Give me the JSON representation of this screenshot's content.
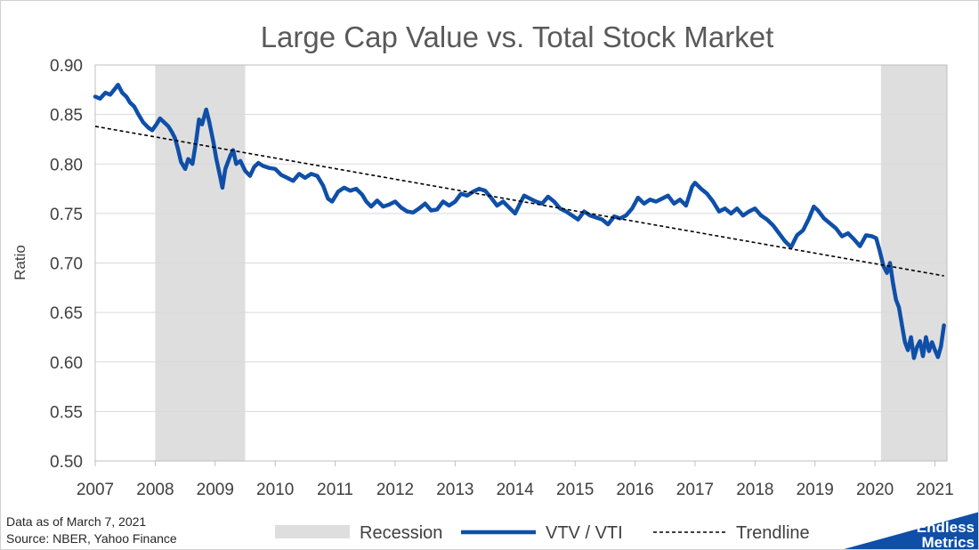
{
  "chart_data": {
    "type": "line",
    "title": "Large Cap Value vs. Total Stock Market",
    "ylabel": "Ratio",
    "xlabel": "",
    "xlim": [
      2007.0,
      2021.2
    ],
    "ylim": [
      0.5,
      0.9
    ],
    "y_ticks": [
      "0.50",
      "0.55",
      "0.60",
      "0.65",
      "0.70",
      "0.75",
      "0.80",
      "0.85",
      "0.90"
    ],
    "x_ticks": [
      "2007",
      "2008",
      "2009",
      "2010",
      "2011",
      "2012",
      "2013",
      "2014",
      "2015",
      "2016",
      "2017",
      "2018",
      "2019",
      "2020",
      "2021"
    ],
    "grid": "horizontal",
    "legend_position": "bottom",
    "recessions": [
      {
        "name": "Recession",
        "start": 2008.0,
        "end": 2009.5
      },
      {
        "name": "Recession",
        "start": 2020.1,
        "end": 2021.2
      }
    ],
    "series": [
      {
        "name": "VTV / VTI",
        "color": "#0f4fa8",
        "points": [
          [
            2007.0,
            0.868
          ],
          [
            2007.08,
            0.866
          ],
          [
            2007.17,
            0.872
          ],
          [
            2007.25,
            0.87
          ],
          [
            2007.33,
            0.876
          ],
          [
            2007.38,
            0.88
          ],
          [
            2007.45,
            0.872
          ],
          [
            2007.52,
            0.868
          ],
          [
            2007.58,
            0.862
          ],
          [
            2007.65,
            0.858
          ],
          [
            2007.72,
            0.85
          ],
          [
            2007.8,
            0.842
          ],
          [
            2007.88,
            0.837
          ],
          [
            2007.95,
            0.834
          ],
          [
            2008.02,
            0.84
          ],
          [
            2008.08,
            0.846
          ],
          [
            2008.15,
            0.842
          ],
          [
            2008.22,
            0.838
          ],
          [
            2008.28,
            0.832
          ],
          [
            2008.33,
            0.826
          ],
          [
            2008.38,
            0.815
          ],
          [
            2008.43,
            0.802
          ],
          [
            2008.5,
            0.795
          ],
          [
            2008.55,
            0.805
          ],
          [
            2008.62,
            0.8
          ],
          [
            2008.68,
            0.822
          ],
          [
            2008.73,
            0.845
          ],
          [
            2008.78,
            0.84
          ],
          [
            2008.85,
            0.855
          ],
          [
            2008.9,
            0.843
          ],
          [
            2008.97,
            0.822
          ],
          [
            2009.02,
            0.805
          ],
          [
            2009.08,
            0.788
          ],
          [
            2009.12,
            0.776
          ],
          [
            2009.17,
            0.795
          ],
          [
            2009.25,
            0.808
          ],
          [
            2009.3,
            0.814
          ],
          [
            2009.35,
            0.8
          ],
          [
            2009.42,
            0.803
          ],
          [
            2009.5,
            0.793
          ],
          [
            2009.58,
            0.788
          ],
          [
            2009.65,
            0.797
          ],
          [
            2009.72,
            0.801
          ],
          [
            2009.8,
            0.798
          ],
          [
            2009.9,
            0.796
          ],
          [
            2010.0,
            0.795
          ],
          [
            2010.1,
            0.789
          ],
          [
            2010.2,
            0.786
          ],
          [
            2010.3,
            0.783
          ],
          [
            2010.4,
            0.79
          ],
          [
            2010.5,
            0.786
          ],
          [
            2010.6,
            0.79
          ],
          [
            2010.7,
            0.788
          ],
          [
            2010.8,
            0.778
          ],
          [
            2010.88,
            0.765
          ],
          [
            2010.95,
            0.762
          ],
          [
            2011.05,
            0.772
          ],
          [
            2011.15,
            0.776
          ],
          [
            2011.25,
            0.773
          ],
          [
            2011.35,
            0.775
          ],
          [
            2011.45,
            0.769
          ],
          [
            2011.52,
            0.762
          ],
          [
            2011.6,
            0.757
          ],
          [
            2011.7,
            0.763
          ],
          [
            2011.8,
            0.757
          ],
          [
            2011.9,
            0.759
          ],
          [
            2012.0,
            0.762
          ],
          [
            2012.1,
            0.756
          ],
          [
            2012.2,
            0.752
          ],
          [
            2012.3,
            0.751
          ],
          [
            2012.4,
            0.755
          ],
          [
            2012.5,
            0.76
          ],
          [
            2012.6,
            0.753
          ],
          [
            2012.7,
            0.754
          ],
          [
            2012.8,
            0.762
          ],
          [
            2012.9,
            0.758
          ],
          [
            2013.0,
            0.762
          ],
          [
            2013.1,
            0.77
          ],
          [
            2013.2,
            0.768
          ],
          [
            2013.3,
            0.772
          ],
          [
            2013.4,
            0.775
          ],
          [
            2013.5,
            0.773
          ],
          [
            2013.6,
            0.766
          ],
          [
            2013.7,
            0.758
          ],
          [
            2013.8,
            0.762
          ],
          [
            2013.9,
            0.756
          ],
          [
            2014.0,
            0.75
          ],
          [
            2014.08,
            0.76
          ],
          [
            2014.15,
            0.768
          ],
          [
            2014.25,
            0.765
          ],
          [
            2014.35,
            0.762
          ],
          [
            2014.45,
            0.76
          ],
          [
            2014.55,
            0.767
          ],
          [
            2014.65,
            0.762
          ],
          [
            2014.75,
            0.755
          ],
          [
            2014.85,
            0.752
          ],
          [
            2014.95,
            0.748
          ],
          [
            2015.05,
            0.744
          ],
          [
            2015.15,
            0.752
          ],
          [
            2015.25,
            0.748
          ],
          [
            2015.35,
            0.746
          ],
          [
            2015.45,
            0.744
          ],
          [
            2015.55,
            0.739
          ],
          [
            2015.65,
            0.747
          ],
          [
            2015.75,
            0.745
          ],
          [
            2015.85,
            0.748
          ],
          [
            2015.95,
            0.755
          ],
          [
            2016.05,
            0.766
          ],
          [
            2016.15,
            0.76
          ],
          [
            2016.25,
            0.764
          ],
          [
            2016.35,
            0.762
          ],
          [
            2016.45,
            0.765
          ],
          [
            2016.55,
            0.768
          ],
          [
            2016.65,
            0.76
          ],
          [
            2016.75,
            0.764
          ],
          [
            2016.85,
            0.758
          ],
          [
            2016.95,
            0.777
          ],
          [
            2017.0,
            0.781
          ],
          [
            2017.1,
            0.775
          ],
          [
            2017.2,
            0.77
          ],
          [
            2017.3,
            0.762
          ],
          [
            2017.4,
            0.752
          ],
          [
            2017.5,
            0.755
          ],
          [
            2017.6,
            0.75
          ],
          [
            2017.7,
            0.755
          ],
          [
            2017.8,
            0.748
          ],
          [
            2017.9,
            0.752
          ],
          [
            2018.0,
            0.755
          ],
          [
            2018.1,
            0.748
          ],
          [
            2018.2,
            0.744
          ],
          [
            2018.3,
            0.738
          ],
          [
            2018.4,
            0.73
          ],
          [
            2018.5,
            0.722
          ],
          [
            2018.6,
            0.716
          ],
          [
            2018.7,
            0.728
          ],
          [
            2018.8,
            0.733
          ],
          [
            2018.9,
            0.745
          ],
          [
            2018.98,
            0.757
          ],
          [
            2019.05,
            0.753
          ],
          [
            2019.15,
            0.745
          ],
          [
            2019.25,
            0.74
          ],
          [
            2019.35,
            0.735
          ],
          [
            2019.45,
            0.727
          ],
          [
            2019.55,
            0.73
          ],
          [
            2019.65,
            0.724
          ],
          [
            2019.75,
            0.717
          ],
          [
            2019.85,
            0.728
          ],
          [
            2019.95,
            0.727
          ],
          [
            2020.02,
            0.725
          ],
          [
            2020.08,
            0.712
          ],
          [
            2020.14,
            0.697
          ],
          [
            2020.2,
            0.69
          ],
          [
            2020.25,
            0.7
          ],
          [
            2020.3,
            0.68
          ],
          [
            2020.35,
            0.663
          ],
          [
            2020.4,
            0.655
          ],
          [
            2020.45,
            0.637
          ],
          [
            2020.5,
            0.62
          ],
          [
            2020.55,
            0.612
          ],
          [
            2020.6,
            0.625
          ],
          [
            2020.65,
            0.604
          ],
          [
            2020.7,
            0.615
          ],
          [
            2020.75,
            0.621
          ],
          [
            2020.8,
            0.606
          ],
          [
            2020.85,
            0.625
          ],
          [
            2020.9,
            0.611
          ],
          [
            2020.95,
            0.62
          ],
          [
            2021.0,
            0.612
          ],
          [
            2021.05,
            0.605
          ],
          [
            2021.1,
            0.616
          ],
          [
            2021.15,
            0.637
          ]
        ]
      },
      {
        "name": "Trendline",
        "style": "dashed",
        "color": "#000000",
        "points": [
          [
            2007.0,
            0.838
          ],
          [
            2021.15,
            0.687
          ]
        ]
      }
    ]
  },
  "legend": {
    "recession_label": "Recession",
    "series_label": "VTV / VTI",
    "trend_label": "Trendline"
  },
  "footnotes": {
    "data_as_of": "Data as of March 7, 2021",
    "source": "Source: NBER, Yahoo Finance"
  },
  "logo": {
    "line1": "Endless",
    "line2": "Metrics",
    "color": "#0f4fa8"
  },
  "colors": {
    "recession_fill": "#dedede",
    "grid": "#d9d9d9",
    "axis": "#bfbfbf"
  }
}
